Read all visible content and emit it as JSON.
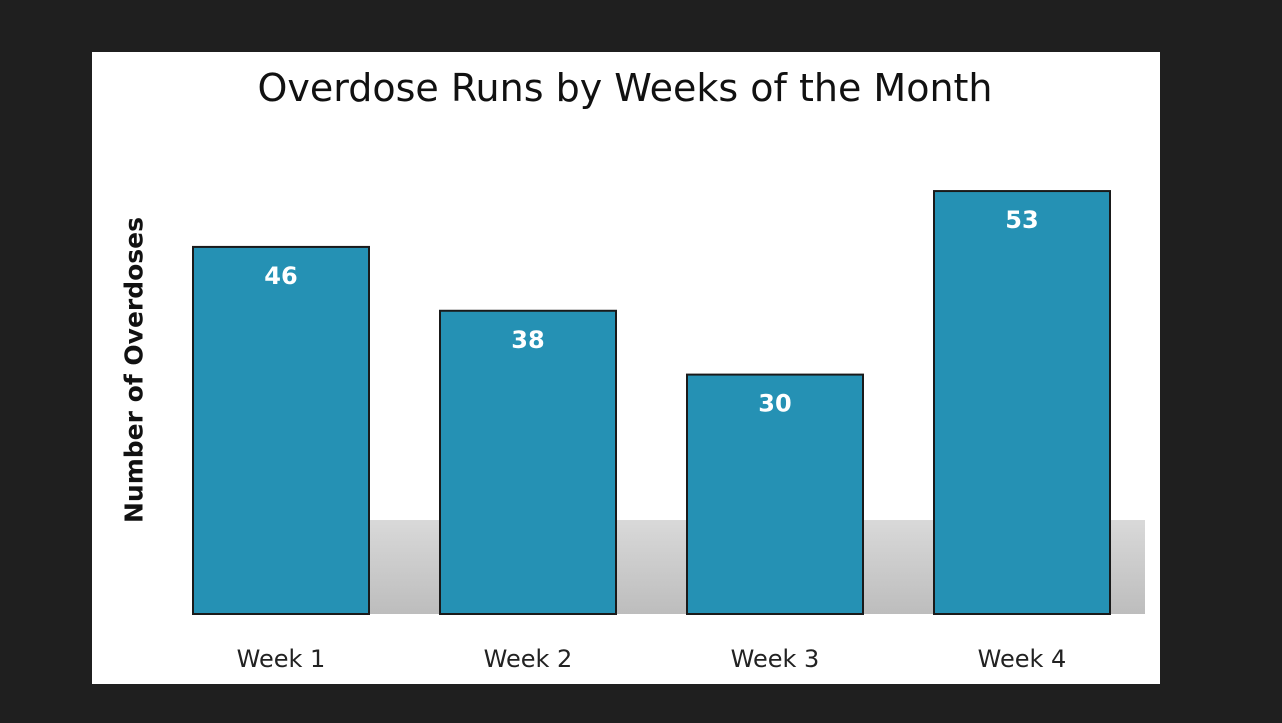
{
  "chart_data": {
    "type": "bar",
    "title": "Overdose Runs by Weeks of the Month",
    "xlabel": "",
    "ylabel": "Number of Overdoses",
    "categories": [
      "Week 1",
      "Week 2",
      "Week 3",
      "Week 4"
    ],
    "values": [
      46,
      38,
      30,
      53
    ],
    "data_labels": [
      "46",
      "38",
      "30",
      "53"
    ],
    "ylim": [
      0,
      60
    ],
    "grid": false,
    "legend": "none",
    "bar_color": "#2591b4",
    "bar_edge_color": "#1a1a1a"
  }
}
